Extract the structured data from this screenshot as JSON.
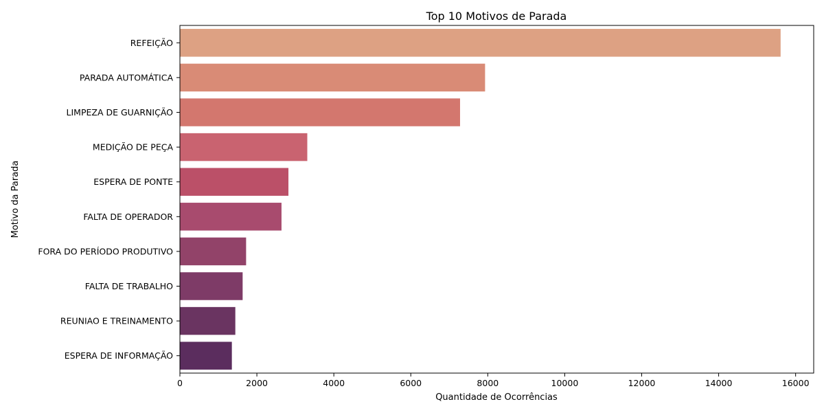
{
  "chart_data": {
    "type": "bar",
    "orientation": "horizontal",
    "title": "Top 10 Motivos de Parada",
    "xlabel": "Quantidade de Ocorrências",
    "ylabel": "Motivo da Parada",
    "categories": [
      "REFEIÇÃO",
      "PARADA AUTOMÁTICA",
      "LIMPEZA DE GUARNIÇÃO",
      "MEDIÇÃO DE PEÇA",
      "ESPERA DE PONTE",
      "FALTA DE OPERADOR",
      "FORA DO PERÍODO PRODUTIVO",
      "FALTA DE TRABALHO",
      "REUNIAO E TREINAMENTO",
      "ESPERA DE INFORMAÇÃO"
    ],
    "values": [
      15610,
      7930,
      7280,
      3310,
      2820,
      2640,
      1720,
      1630,
      1440,
      1350
    ],
    "xlim": [
      0,
      16470
    ],
    "xticks": [
      0,
      2000,
      4000,
      6000,
      8000,
      10000,
      12000,
      14000,
      16000
    ],
    "colors": [
      "#dda183",
      "#d98b76",
      "#d3776e",
      "#c96370",
      "#bb5068",
      "#a84b6e",
      "#924369",
      "#7e3b67",
      "#6a3461",
      "#5b2d5e"
    ],
    "grid": false,
    "legend": "none"
  }
}
